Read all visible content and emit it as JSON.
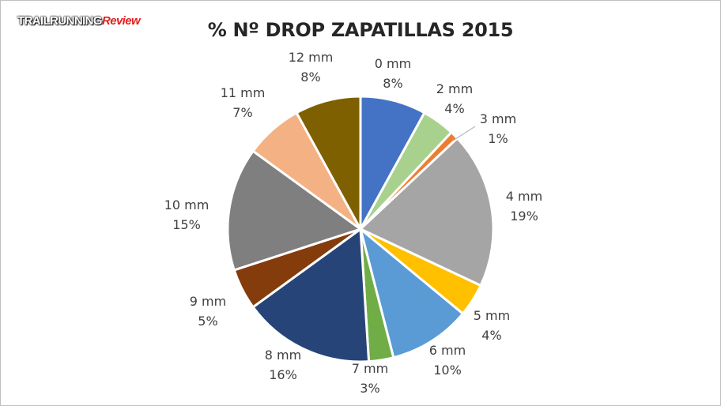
{
  "logo": {
    "part1": "TRAILRUNNING",
    "part2": "Review"
  },
  "chart_data": {
    "type": "pie",
    "title": "% Nº DROP ZAPATILLAS 2015",
    "slices": [
      {
        "label": "0 mm",
        "pct_label": "8%",
        "value": 8,
        "color": "#4472c4"
      },
      {
        "label": "2 mm",
        "pct_label": "4%",
        "value": 4,
        "color": "#a9d18e"
      },
      {
        "label": "3 mm",
        "pct_label": "1%",
        "value": 1,
        "color": "#ed7d31"
      },
      {
        "label": "4 mm",
        "pct_label": "19%",
        "value": 19,
        "color": "#a5a5a5"
      },
      {
        "label": "5 mm",
        "pct_label": "4%",
        "value": 4,
        "color": "#ffc000"
      },
      {
        "label": "6 mm",
        "pct_label": "10%",
        "value": 10,
        "color": "#5b9bd5"
      },
      {
        "label": "7 mm",
        "pct_label": "3%",
        "value": 3,
        "color": "#70ad47"
      },
      {
        "label": "8 mm",
        "pct_label": "16%",
        "value": 16,
        "color": "#264478"
      },
      {
        "label": "9 mm",
        "pct_label": "5%",
        "value": 5,
        "color": "#843c0c"
      },
      {
        "label": "10 mm",
        "pct_label": "15%",
        "value": 15,
        "color": "#7f7f7f"
      },
      {
        "label": "11 mm",
        "pct_label": "7%",
        "value": 7,
        "color": "#f4b183"
      },
      {
        "label": "12 mm",
        "pct_label": "8%",
        "value": 8,
        "color": "#7f6000"
      }
    ]
  }
}
